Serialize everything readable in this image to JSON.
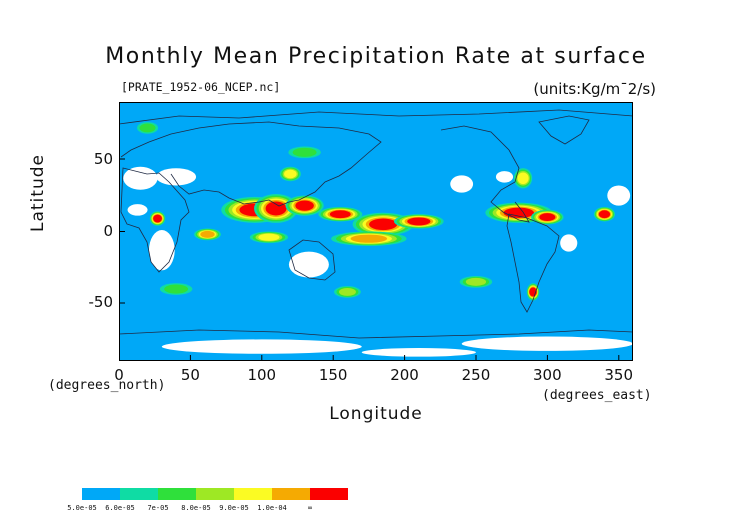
{
  "title": "Monthly Mean Precipitation Rate at surface",
  "file_label": "[PRATE_1952-06_NCEP.nc]",
  "units_label": "(units:Kg/m¯2/s)",
  "colors": {
    "background_field": "#00a8f7",
    "land_gap": "#ffffff",
    "coast": "#1f2a44"
  },
  "chart_data": {
    "type": "heatmap",
    "title": "Monthly Mean Precipitation Rate at surface",
    "xlabel": "Longitude",
    "ylabel": "Latitude",
    "x_unit": "(degrees_east)",
    "y_unit": "(degrees_north)",
    "xlim": [
      0,
      360
    ],
    "ylim": [
      -90,
      90
    ],
    "x_ticks": [
      "0",
      "50",
      "100",
      "150",
      "200",
      "250",
      "300",
      "350"
    ],
    "x_tick_values": [
      0,
      50,
      100,
      150,
      200,
      250,
      300,
      350
    ],
    "y_ticks": [
      "50",
      "0",
      "-50"
    ],
    "y_tick_values": [
      50,
      0,
      -50
    ],
    "colorbar": {
      "labels": [
        "5.0e-05",
        "6.0e-05",
        "7e-05",
        "8.0e-05",
        "9.0e-05",
        "1.0e-04",
        "∞"
      ],
      "colors": [
        "#00a8f7",
        "#0fdca4",
        "#2fe03b",
        "#9ee824",
        "#fbfb23",
        "#f5aa02",
        "#fb0000"
      ]
    },
    "blobs": [
      {
        "lon": 95,
        "lat": 15,
        "level": 6,
        "rx": 22,
        "ry": 8
      },
      {
        "lon": 110,
        "lat": 16,
        "level": 6,
        "rx": 14,
        "ry": 9
      },
      {
        "lon": 130,
        "lat": 18,
        "level": 6,
        "rx": 12,
        "ry": 6
      },
      {
        "lon": 155,
        "lat": 12,
        "level": 6,
        "rx": 14,
        "ry": 4
      },
      {
        "lon": 185,
        "lat": 5,
        "level": 6,
        "rx": 20,
        "ry": 7
      },
      {
        "lon": 210,
        "lat": 7,
        "level": 6,
        "rx": 16,
        "ry": 4
      },
      {
        "lon": 175,
        "lat": -5,
        "level": 5,
        "rx": 25,
        "ry": 4
      },
      {
        "lon": 280,
        "lat": 13,
        "level": 6,
        "rx": 22,
        "ry": 6
      },
      {
        "lon": 300,
        "lat": 10,
        "level": 6,
        "rx": 10,
        "ry": 4
      },
      {
        "lon": 27,
        "lat": 9,
        "level": 6,
        "rx": 4,
        "ry": 4
      },
      {
        "lon": 62,
        "lat": -2,
        "level": 5,
        "rx": 8,
        "ry": 3
      },
      {
        "lon": 105,
        "lat": -4,
        "level": 4,
        "rx": 12,
        "ry": 3
      },
      {
        "lon": 290,
        "lat": -42,
        "level": 6,
        "rx": 3,
        "ry": 5
      },
      {
        "lon": 283,
        "lat": 37,
        "level": 4,
        "rx": 5,
        "ry": 6
      },
      {
        "lon": 120,
        "lat": 40,
        "level": 4,
        "rx": 6,
        "ry": 4
      },
      {
        "lon": 130,
        "lat": 55,
        "level": 2,
        "rx": 10,
        "ry": 3
      },
      {
        "lon": 340,
        "lat": 12,
        "level": 6,
        "rx": 6,
        "ry": 4
      },
      {
        "lon": 250,
        "lat": -35,
        "level": 3,
        "rx": 10,
        "ry": 3
      },
      {
        "lon": 160,
        "lat": -42,
        "level": 3,
        "rx": 8,
        "ry": 3
      },
      {
        "lon": 40,
        "lat": -40,
        "level": 2,
        "rx": 10,
        "ry": 3
      },
      {
        "lon": 20,
        "lat": 72,
        "level": 2,
        "rx": 6,
        "ry": 3
      }
    ],
    "gaps": [
      {
        "lon": 15,
        "lat": 37,
        "rx": 12,
        "ry": 8
      },
      {
        "lon": 40,
        "lat": 38,
        "rx": 14,
        "ry": 6
      },
      {
        "lon": 13,
        "lat": 15,
        "rx": 7,
        "ry": 4
      },
      {
        "lon": 30,
        "lat": -13,
        "rx": 9,
        "ry": 14
      },
      {
        "lon": 133,
        "lat": -23,
        "rx": 14,
        "ry": 9
      },
      {
        "lon": 315,
        "lat": -8,
        "rx": 6,
        "ry": 6
      },
      {
        "lon": 350,
        "lat": 25,
        "rx": 8,
        "ry": 7
      },
      {
        "lon": 240,
        "lat": 33,
        "rx": 8,
        "ry": 6
      },
      {
        "lon": 270,
        "lat": 38,
        "rx": 6,
        "ry": 4
      },
      {
        "lon": 300,
        "lat": -78,
        "rx": 60,
        "ry": 5
      },
      {
        "lon": 100,
        "lat": -80,
        "rx": 70,
        "ry": 5
      },
      {
        "lon": 210,
        "lat": -84,
        "rx": 40,
        "ry": 3
      }
    ]
  }
}
